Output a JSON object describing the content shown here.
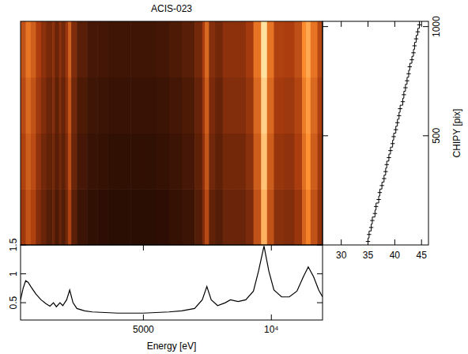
{
  "chart_data": [
    {
      "type": "heatmap",
      "title": "ACIS-023",
      "x_edges": [
        200,
        400,
        600,
        800,
        1000,
        1200,
        1400,
        1440,
        1540,
        1700,
        1780,
        1950,
        2060,
        2180,
        2400,
        2800,
        3200,
        3600,
        4000,
        4500,
        5000,
        5500,
        6000,
        6500,
        7000,
        7300,
        7400,
        7560,
        7800,
        8100,
        8600,
        9000,
        9300,
        9600,
        9830,
        10100,
        10500,
        10900,
        11200,
        11350,
        11530,
        11800,
        12000
      ],
      "y_edges": [
        0,
        256,
        512,
        768,
        1024
      ],
      "cells": [
        [
          0.63,
          0.77,
          0.68,
          0.54,
          0.47,
          0.41,
          0.41,
          0.47,
          0.39,
          0.47,
          0.41,
          0.5,
          0.68,
          0.43,
          0.34,
          0.31,
          0.3,
          0.29,
          0.29,
          0.29,
          0.29,
          0.3,
          0.32,
          0.34,
          0.41,
          0.54,
          0.72,
          0.45,
          0.41,
          0.47,
          0.47,
          0.52,
          0.77,
          1.31,
          0.77,
          0.56,
          0.54,
          0.61,
          0.86,
          1.01,
          0.77,
          0.59
        ],
        [
          0.68,
          0.82,
          0.73,
          0.58,
          0.5,
          0.45,
          0.44,
          0.5,
          0.42,
          0.5,
          0.44,
          0.53,
          0.73,
          0.47,
          0.37,
          0.33,
          0.32,
          0.31,
          0.31,
          0.31,
          0.31,
          0.32,
          0.34,
          0.37,
          0.44,
          0.58,
          0.78,
          0.49,
          0.44,
          0.5,
          0.5,
          0.56,
          0.82,
          1.41,
          0.82,
          0.6,
          0.58,
          0.66,
          0.92,
          1.09,
          0.82,
          0.63
        ],
        [
          0.72,
          0.88,
          0.77,
          0.62,
          0.54,
          0.47,
          0.46,
          0.54,
          0.44,
          0.54,
          0.46,
          0.57,
          0.77,
          0.49,
          0.39,
          0.35,
          0.34,
          0.33,
          0.33,
          0.33,
          0.33,
          0.34,
          0.36,
          0.39,
          0.46,
          0.62,
          0.82,
          0.52,
          0.46,
          0.54,
          0.54,
          0.6,
          0.88,
          1.49,
          0.88,
          0.64,
          0.62,
          0.7,
          0.98,
          1.15,
          0.88,
          0.67
        ],
        [
          0.77,
          0.94,
          0.83,
          0.66,
          0.57,
          0.51,
          0.5,
          0.57,
          0.47,
          0.57,
          0.5,
          0.61,
          0.83,
          0.53,
          0.42,
          0.37,
          0.36,
          0.35,
          0.35,
          0.35,
          0.35,
          0.36,
          0.39,
          0.42,
          0.5,
          0.66,
          0.88,
          0.55,
          0.5,
          0.57,
          0.57,
          0.64,
          0.94,
          1.6,
          0.94,
          0.68,
          0.66,
          0.75,
          1.05,
          1.23,
          0.94,
          0.72
        ]
      ],
      "zlim": [
        0.25,
        1.6
      ],
      "xlim": [
        200,
        12000
      ],
      "ylim": [
        0,
        1024
      ],
      "tick_labels": false
    },
    {
      "type": "line",
      "xlabel": "Energy [eV]",
      "color": "#000000",
      "x": [
        200,
        300,
        400,
        500,
        600,
        800,
        1000,
        1200,
        1350,
        1486,
        1600,
        1740,
        1850,
        2000,
        2120,
        2250,
        2400,
        2700,
        3000,
        3500,
        4000,
        4500,
        5000,
        5500,
        6000,
        6500,
        7000,
        7300,
        7480,
        7650,
        7900,
        8200,
        8400,
        8700,
        9000,
        9300,
        9500,
        9713,
        9900,
        10100,
        10400,
        10700,
        11000,
        11250,
        11442,
        11650,
        11850,
        12000
      ],
      "values": [
        0.55,
        0.75,
        0.88,
        0.85,
        0.78,
        0.65,
        0.55,
        0.48,
        0.44,
        0.5,
        0.43,
        0.5,
        0.45,
        0.55,
        0.72,
        0.5,
        0.4,
        0.36,
        0.34,
        0.33,
        0.32,
        0.32,
        0.32,
        0.33,
        0.34,
        0.36,
        0.4,
        0.55,
        0.78,
        0.55,
        0.45,
        0.5,
        0.55,
        0.52,
        0.55,
        0.7,
        1.05,
        1.48,
        1.05,
        0.72,
        0.6,
        0.6,
        0.7,
        0.95,
        1.12,
        0.95,
        0.72,
        0.6
      ],
      "xlim": [
        200,
        12000
      ],
      "ylim": [
        0.2,
        1.5
      ],
      "xticks": [
        5000,
        {
          "value": 10000,
          "label": "10⁴"
        }
      ],
      "yticks": [
        0.5,
        1,
        1.5
      ]
    },
    {
      "type": "histogram",
      "orientation": "horizontal",
      "ylabel": "CHIPY [pix]",
      "color": "#000000",
      "bins": [
        0,
        32,
        64,
        96,
        128,
        160,
        192,
        224,
        256,
        288,
        320,
        352,
        384,
        416,
        448,
        480,
        512,
        544,
        576,
        608,
        640,
        672,
        704,
        736,
        768,
        800,
        832,
        864,
        896,
        928,
        960,
        992,
        1024
      ],
      "values": [
        35.0,
        35.2,
        35.6,
        35.8,
        36.3,
        36.5,
        37.0,
        37.2,
        37.6,
        38.0,
        38.3,
        38.5,
        38.9,
        39.2,
        39.6,
        39.8,
        40.2,
        40.5,
        40.8,
        41.0,
        41.5,
        41.7,
        42.0,
        42.3,
        42.6,
        42.8,
        43.2,
        43.5,
        43.7,
        44.0,
        44.3,
        44.6
      ],
      "errors": [
        0.4,
        0.4,
        0.4,
        0.4,
        0.4,
        0.4,
        0.4,
        0.4,
        0.4,
        0.4,
        0.4,
        0.4,
        0.4,
        0.4,
        0.4,
        0.4,
        0.4,
        0.4,
        0.4,
        0.4,
        0.4,
        0.4,
        0.4,
        0.4,
        0.4,
        0.4,
        0.4,
        0.4,
        0.4,
        0.4,
        0.4,
        0.4
      ],
      "xlim": [
        26.5,
        46.3
      ],
      "ylim": [
        0,
        1024
      ],
      "xticks": [
        30,
        35,
        40,
        45
      ],
      "yticks": [
        500,
        1000
      ]
    }
  ]
}
